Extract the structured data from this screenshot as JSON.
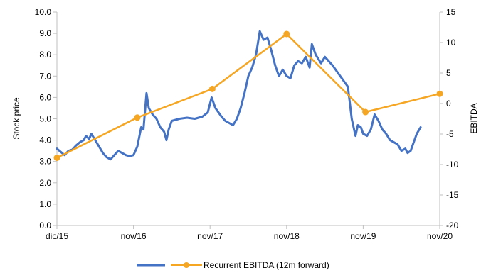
{
  "chart_data": {
    "type": "line",
    "x_ticks": [
      "dic/15",
      "nov/16",
      "nov/17",
      "nov/18",
      "nov/19",
      "nov/20"
    ],
    "ylabel_left": "Stock price",
    "ylabel_right": "EBITDA",
    "ylim_left": [
      0.0,
      10.0
    ],
    "ylim_right": [
      -20,
      15
    ],
    "yticks_left": [
      "0.0",
      "1.0",
      "2.0",
      "3.0",
      "4.0",
      "5.0",
      "6.0",
      "7.0",
      "8.0",
      "9.0",
      "10.0"
    ],
    "yticks_right": [
      "-20",
      "-15",
      "-10",
      "-5",
      "0",
      "5",
      "10",
      "15"
    ],
    "grid": false,
    "legend_position": "bottom",
    "series": [
      {
        "name": "",
        "axis": "left",
        "color": "#4472C4",
        "points": [
          [
            0.0,
            3.6
          ],
          [
            0.05,
            3.45
          ],
          [
            0.1,
            3.3
          ],
          [
            0.15,
            3.5
          ],
          [
            0.2,
            3.55
          ],
          [
            0.25,
            3.75
          ],
          [
            0.3,
            3.9
          ],
          [
            0.35,
            4.0
          ],
          [
            0.38,
            4.2
          ],
          [
            0.42,
            4.05
          ],
          [
            0.45,
            4.3
          ],
          [
            0.5,
            4.0
          ],
          [
            0.55,
            3.7
          ],
          [
            0.6,
            3.4
          ],
          [
            0.65,
            3.2
          ],
          [
            0.7,
            3.1
          ],
          [
            0.75,
            3.3
          ],
          [
            0.8,
            3.5
          ],
          [
            0.85,
            3.4
          ],
          [
            0.9,
            3.3
          ],
          [
            0.95,
            3.25
          ],
          [
            1.0,
            3.3
          ],
          [
            1.05,
            3.7
          ],
          [
            1.1,
            4.6
          ],
          [
            1.13,
            4.5
          ],
          [
            1.17,
            6.2
          ],
          [
            1.2,
            5.5
          ],
          [
            1.25,
            5.2
          ],
          [
            1.3,
            5.0
          ],
          [
            1.35,
            4.6
          ],
          [
            1.4,
            4.4
          ],
          [
            1.43,
            4.0
          ],
          [
            1.46,
            4.5
          ],
          [
            1.5,
            4.9
          ],
          [
            1.6,
            5.0
          ],
          [
            1.7,
            5.05
          ],
          [
            1.8,
            5.0
          ],
          [
            1.9,
            5.1
          ],
          [
            1.97,
            5.3
          ],
          [
            2.02,
            6.0
          ],
          [
            2.07,
            5.5
          ],
          [
            2.15,
            5.1
          ],
          [
            2.2,
            4.9
          ],
          [
            2.3,
            4.7
          ],
          [
            2.35,
            5.0
          ],
          [
            2.4,
            5.5
          ],
          [
            2.45,
            6.2
          ],
          [
            2.5,
            7.0
          ],
          [
            2.55,
            7.4
          ],
          [
            2.6,
            8.0
          ],
          [
            2.65,
            9.1
          ],
          [
            2.7,
            8.7
          ],
          [
            2.75,
            8.8
          ],
          [
            2.8,
            8.2
          ],
          [
            2.85,
            7.5
          ],
          [
            2.9,
            7.0
          ],
          [
            2.95,
            7.3
          ],
          [
            3.0,
            7.0
          ],
          [
            3.05,
            6.9
          ],
          [
            3.1,
            7.5
          ],
          [
            3.15,
            7.7
          ],
          [
            3.2,
            7.6
          ],
          [
            3.25,
            7.9
          ],
          [
            3.3,
            7.4
          ],
          [
            3.33,
            8.5
          ],
          [
            3.38,
            8.0
          ],
          [
            3.45,
            7.6
          ],
          [
            3.5,
            7.9
          ],
          [
            3.6,
            7.5
          ],
          [
            3.7,
            7.0
          ],
          [
            3.8,
            6.5
          ],
          [
            3.85,
            5.0
          ],
          [
            3.9,
            4.2
          ],
          [
            3.93,
            4.7
          ],
          [
            3.97,
            4.6
          ],
          [
            4.0,
            4.3
          ],
          [
            4.05,
            4.2
          ],
          [
            4.1,
            4.5
          ],
          [
            4.15,
            5.2
          ],
          [
            4.2,
            4.9
          ],
          [
            4.25,
            4.5
          ],
          [
            4.3,
            4.3
          ],
          [
            4.35,
            4.0
          ],
          [
            4.4,
            3.9
          ],
          [
            4.45,
            3.8
          ],
          [
            4.5,
            3.5
          ],
          [
            4.55,
            3.6
          ],
          [
            4.58,
            3.4
          ],
          [
            4.62,
            3.5
          ],
          [
            4.66,
            3.9
          ],
          [
            4.7,
            4.3
          ],
          [
            4.75,
            4.6
          ]
        ]
      },
      {
        "name": "Recurrent EBITDA (12m forward)",
        "axis": "right",
        "color": "#F5A623",
        "points": [
          [
            0.0,
            -8.9
          ],
          [
            1.05,
            -2.3
          ],
          [
            2.03,
            2.4
          ],
          [
            3.0,
            11.4
          ],
          [
            4.03,
            -1.4
          ],
          [
            5.0,
            1.6
          ]
        ]
      }
    ]
  }
}
